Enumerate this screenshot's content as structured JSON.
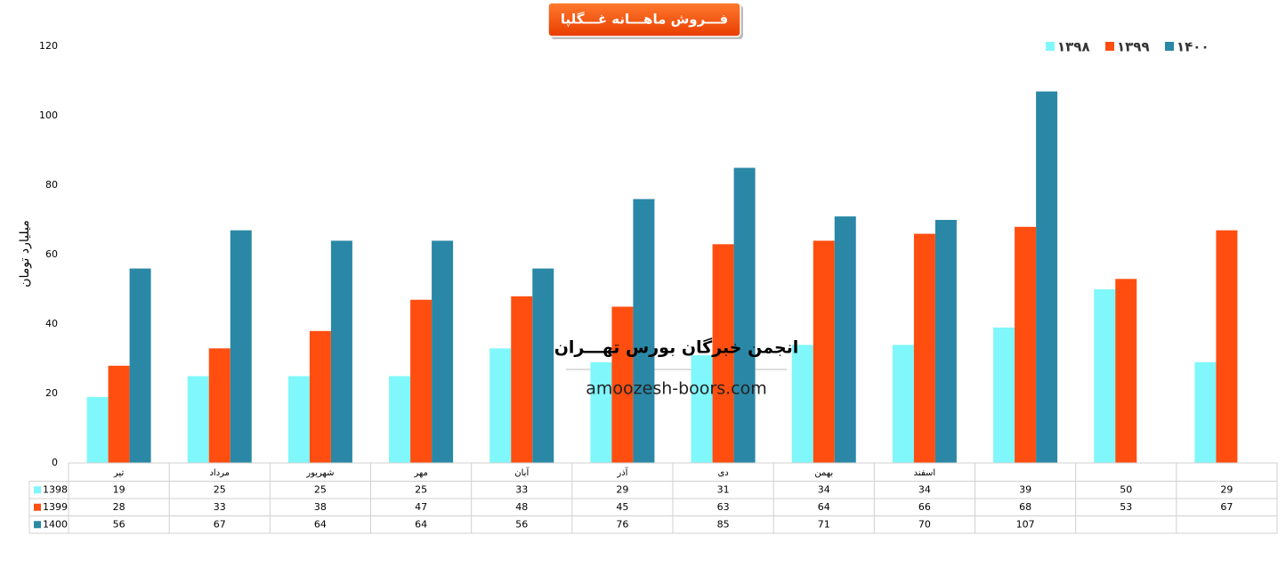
{
  "chart_data": {
    "type": "bar",
    "title": "فـــروش ماهـــانه غـــگلپا",
    "y_label": "میلیارد تومان",
    "annotations": [
      "انجمن خبرگان بورس تهـــران",
      "amoozesh-boors.com"
    ],
    "categories": [
      "تیر",
      "مرداد",
      "شهریور",
      "مهر",
      "آبان",
      "آذر",
      "دی",
      "بهمن",
      "اسفند",
      null,
      null,
      null
    ],
    "series": [
      {
        "name": "۱۳۹۸",
        "table_label": "1398",
        "color": "#7ff7fb",
        "values": [
          19,
          25,
          25,
          25,
          33,
          29,
          31,
          34,
          34,
          39,
          50,
          29
        ]
      },
      {
        "name": "۱۳۹۹",
        "table_label": "1399",
        "color": "#ff4e10",
        "values": [
          28,
          33,
          38,
          47,
          48,
          45,
          63,
          64,
          66,
          68,
          53,
          67
        ]
      },
      {
        "name": "۱۴۰۰",
        "table_label": "1400",
        "color": "#2a88a6",
        "values": [
          56,
          67,
          64,
          64,
          56,
          76,
          85,
          71,
          70,
          107,
          null,
          null
        ]
      }
    ],
    "ylim": [
      0,
      120
    ],
    "yticks": [
      0,
      20,
      40,
      60,
      80,
      100,
      120
    ],
    "grid": false,
    "legend": "top-right"
  }
}
